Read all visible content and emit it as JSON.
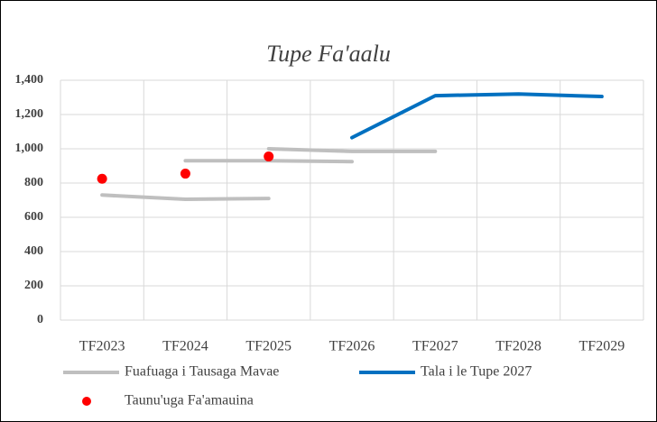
{
  "chart_data": {
    "type": "line",
    "title": "Tupe Fa'aalu",
    "categories": [
      "TF2023",
      "TF2024",
      "TF2025",
      "TF2026",
      "TF2027",
      "TF2028",
      "TF2029"
    ],
    "series": [
      {
        "name": "Fuafuaga i Tausaga Mavae",
        "color": "#bfbfbf",
        "values": [
          730,
          705,
          710,
          null,
          null,
          null,
          null
        ]
      },
      {
        "color": "#bfbfbf",
        "values": [
          null,
          930,
          930,
          925,
          null,
          null,
          null
        ]
      },
      {
        "color": "#bfbfbf",
        "values": [
          null,
          null,
          1000,
          985,
          985,
          null,
          null
        ]
      },
      {
        "name": "Tala i le Tupe 2027",
        "color": "#0070c0",
        "values": [
          null,
          null,
          null,
          1065,
          1310,
          1320,
          1305
        ]
      },
      {
        "name": "Taunu'uga Fa'amauina",
        "color": "#ff0000",
        "marker": true,
        "values": [
          825,
          855,
          955,
          null,
          null,
          null,
          null
        ]
      }
    ],
    "ylim": [
      0,
      1400
    ],
    "yticks": [
      0,
      200,
      400,
      600,
      800,
      {
        "value": 1000,
        "label": "1,000"
      },
      {
        "value": 1200,
        "label": "1,200"
      },
      {
        "value": 1400,
        "label": "1,400"
      }
    ],
    "grid": true
  }
}
